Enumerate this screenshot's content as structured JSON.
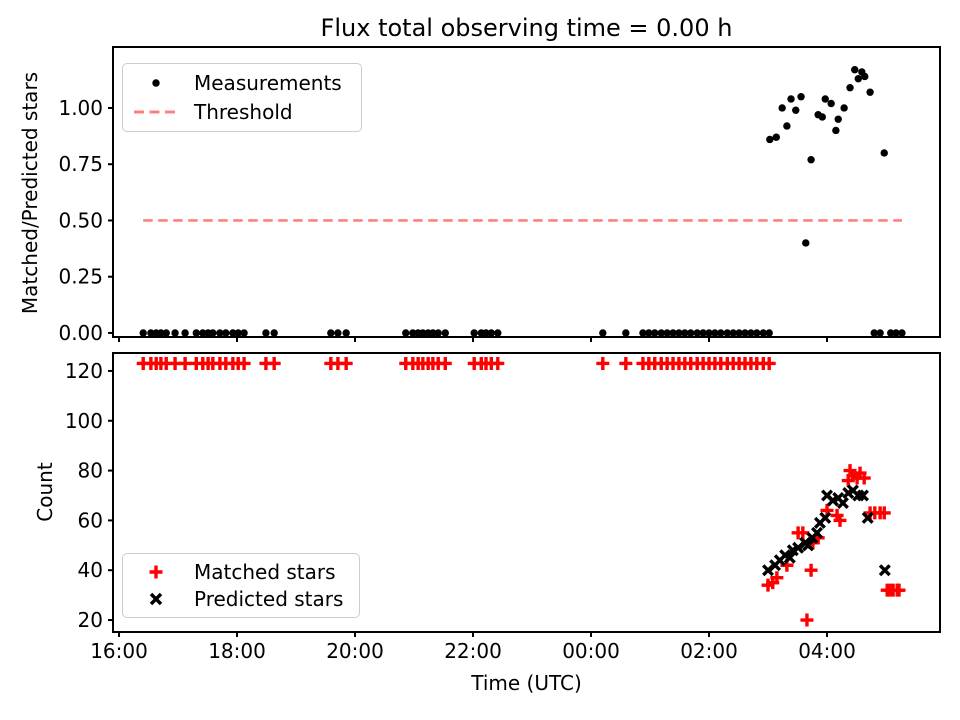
{
  "title": "Flux total observing time = 0.00 h",
  "colors": {
    "marker_black": "#000000",
    "marker_red": "#ff0000",
    "threshold": "#ff8080",
    "spine": "#000000",
    "legend_border": "#cccccc",
    "background": "#ffffff"
  },
  "chart_data": [
    {
      "type": "scatter",
      "title": "Flux total observing time = 0.00 h",
      "ylabel": "Matched/Predicted stars",
      "ylim": [
        -0.018,
        1.271
      ],
      "yticks": [
        0,
        0.25,
        0.5,
        0.75,
        1.0
      ],
      "ytick_labels": [
        "0.00",
        "0.25",
        "0.50",
        "0.75",
        "1.00"
      ],
      "grid": false,
      "legend_position": "upper left",
      "series": [
        {
          "name": "Measurements",
          "marker": "dot",
          "color": "#000000",
          "x": [
            16.41,
            16.54,
            16.63,
            16.71,
            16.8,
            16.95,
            17.12,
            17.31,
            17.42,
            17.51,
            17.59,
            17.71,
            17.81,
            17.93,
            18.02,
            18.12,
            18.49,
            18.63,
            19.59,
            19.71,
            19.85,
            20.86,
            20.98,
            21.07,
            21.15,
            21.24,
            21.32,
            21.41,
            21.53,
            22.02,
            22.14,
            22.22,
            22.31,
            22.42,
            24.2,
            24.59,
            24.88,
            24.98,
            25.08,
            25.19,
            25.29,
            25.39,
            25.49,
            25.59,
            25.69,
            25.8,
            25.9,
            26.0,
            26.1,
            26.2,
            26.31,
            26.41,
            26.51,
            26.61,
            26.71,
            26.81,
            26.92,
            27.02,
            28.8,
            28.9,
            29.08,
            29.17,
            29.27,
            27.03,
            27.14,
            27.24,
            27.32,
            27.39,
            27.47,
            27.56,
            27.64,
            27.73,
            27.85,
            27.92,
            27.97,
            28.07,
            28.15,
            28.19,
            28.29,
            28.39,
            28.47,
            28.53,
            28.59,
            28.64,
            28.73,
            28.97
          ],
          "y": [
            0,
            0,
            0,
            0,
            0,
            0,
            0,
            0,
            0,
            0,
            0,
            0,
            0,
            0,
            0,
            0,
            0,
            0,
            0,
            0,
            0,
            0,
            0,
            0,
            0,
            0,
            0,
            0,
            0,
            0,
            0,
            0,
            0,
            0,
            0,
            0,
            0,
            0,
            0,
            0,
            0,
            0,
            0,
            0,
            0,
            0,
            0,
            0,
            0,
            0,
            0,
            0,
            0,
            0,
            0,
            0,
            0,
            0,
            0,
            0,
            0,
            0,
            0,
            0.86,
            0.87,
            1.0,
            0.92,
            1.04,
            0.99,
            1.05,
            0.4,
            0.77,
            0.97,
            0.96,
            1.04,
            1.02,
            0.9,
            0.95,
            1.0,
            1.09,
            1.17,
            1.13,
            1.16,
            1.14,
            1.07,
            0.8
          ]
        },
        {
          "name": "Threshold",
          "marker": "hline",
          "style": "dashed",
          "color": "#ff8080",
          "value": 0.5,
          "x_start": 16.41,
          "x_end": 29.27
        }
      ]
    },
    {
      "type": "scatter",
      "ylabel": "Count",
      "xlabel": "Time (UTC)",
      "ylim": [
        15.2,
        127.2
      ],
      "yticks": [
        20,
        40,
        60,
        80,
        100,
        120
      ],
      "ytick_labels": [
        "20",
        "40",
        "60",
        "80",
        "100",
        "120"
      ],
      "xlim": [
        15.898,
        29.915
      ],
      "xticks": [
        16,
        18,
        20,
        22,
        24,
        26,
        28
      ],
      "xtick_labels": [
        "16:00",
        "18:00",
        "20:00",
        "22:00",
        "00:00",
        "02:00",
        "04:00"
      ],
      "grid": false,
      "legend_position": "lower left",
      "series": [
        {
          "name": "Matched stars",
          "marker": "plus",
          "color": "#ff0000",
          "x": [
            16.41,
            16.54,
            16.63,
            16.71,
            16.8,
            16.95,
            17.12,
            17.31,
            17.42,
            17.51,
            17.59,
            17.71,
            17.81,
            17.93,
            18.02,
            18.12,
            18.49,
            18.63,
            19.59,
            19.71,
            19.85,
            20.86,
            20.98,
            21.07,
            21.15,
            21.24,
            21.32,
            21.41,
            21.53,
            22.02,
            22.14,
            22.22,
            22.31,
            22.42,
            24.2,
            24.59,
            24.88,
            24.98,
            25.08,
            25.19,
            25.29,
            25.39,
            25.49,
            25.59,
            25.69,
            25.8,
            25.9,
            26.0,
            26.1,
            26.2,
            26.31,
            26.41,
            26.51,
            26.61,
            26.71,
            26.81,
            26.92,
            27.02,
            27.0,
            27.08,
            27.15,
            27.32,
            27.51,
            27.59,
            27.66,
            27.73,
            27.76,
            27.85,
            28.0,
            28.17,
            28.22,
            28.36,
            28.39,
            28.44,
            28.51,
            28.56,
            28.63,
            28.73,
            28.81,
            28.9,
            28.97,
            29.02,
            29.07,
            29.12,
            29.19,
            29.22
          ],
          "y": [
            123,
            123,
            123,
            123,
            123,
            123,
            123,
            123,
            123,
            123,
            123,
            123,
            123,
            123,
            123,
            123,
            123,
            123,
            123,
            123,
            123,
            123,
            123,
            123,
            123,
            123,
            123,
            123,
            123,
            123,
            123,
            123,
            123,
            123,
            123,
            123,
            123,
            123,
            123,
            123,
            123,
            123,
            123,
            123,
            123,
            123,
            123,
            123,
            123,
            123,
            123,
            123,
            123,
            123,
            123,
            123,
            123,
            123,
            34,
            35,
            37,
            42,
            55,
            55,
            20,
            40,
            51,
            53,
            64,
            62,
            60,
            76,
            80,
            78,
            77,
            79,
            77,
            63,
            63,
            63,
            63,
            32,
            32,
            32,
            32,
            32
          ]
        },
        {
          "name": "Predicted stars",
          "marker": "x",
          "color": "#000000",
          "x": [
            27.0,
            27.12,
            27.2,
            27.29,
            27.37,
            27.42,
            27.51,
            27.63,
            27.68,
            27.75,
            27.83,
            27.88,
            27.97,
            28.0,
            28.1,
            28.19,
            28.27,
            28.36,
            28.44,
            28.53,
            28.61,
            28.69,
            28.98
          ],
          "y": [
            40,
            42,
            44,
            46,
            45,
            48,
            49,
            51,
            50,
            53,
            55,
            59,
            61,
            70,
            68,
            69,
            67,
            71,
            72,
            70,
            70,
            61,
            40
          ]
        }
      ]
    }
  ]
}
